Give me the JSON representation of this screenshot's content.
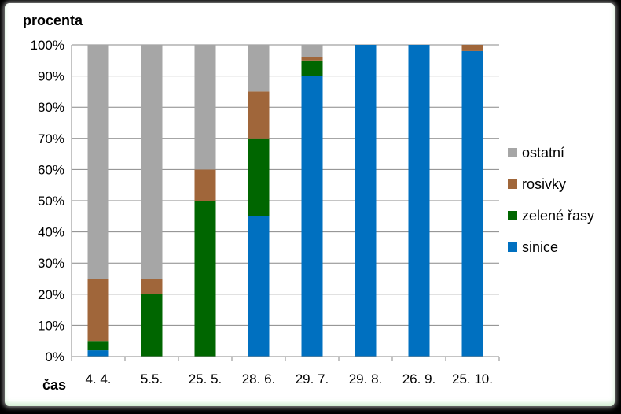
{
  "chart_data": {
    "type": "bar",
    "stacked": true,
    "percent": true,
    "ylabel": "procenta",
    "xlabel": "čas",
    "ylim": [
      0,
      100
    ],
    "yticks": [
      "0%",
      "10%",
      "20%",
      "30%",
      "40%",
      "50%",
      "60%",
      "70%",
      "80%",
      "90%",
      "100%"
    ],
    "grid": true,
    "legend_position": "right",
    "categories": [
      "4. 4.",
      "5.5.",
      "25. 5.",
      "28. 6.",
      "29. 7.",
      "29. 8.",
      "26. 9.",
      "25. 10."
    ],
    "series": [
      {
        "name": "sinice",
        "color": "#0070C0",
        "values": [
          2,
          0,
          0,
          45,
          90,
          100,
          100,
          98
        ]
      },
      {
        "name": "zelené řasy",
        "color": "#006600",
        "values": [
          3,
          20,
          50,
          25,
          5,
          0,
          0,
          0
        ]
      },
      {
        "name": "rosivky",
        "color": "#A0663A",
        "values": [
          20,
          5,
          10,
          15,
          1,
          0,
          0,
          2
        ]
      },
      {
        "name": "ostatní",
        "color": "#A6A6A6",
        "values": [
          75,
          75,
          40,
          15,
          4,
          0,
          0,
          0
        ]
      }
    ]
  }
}
